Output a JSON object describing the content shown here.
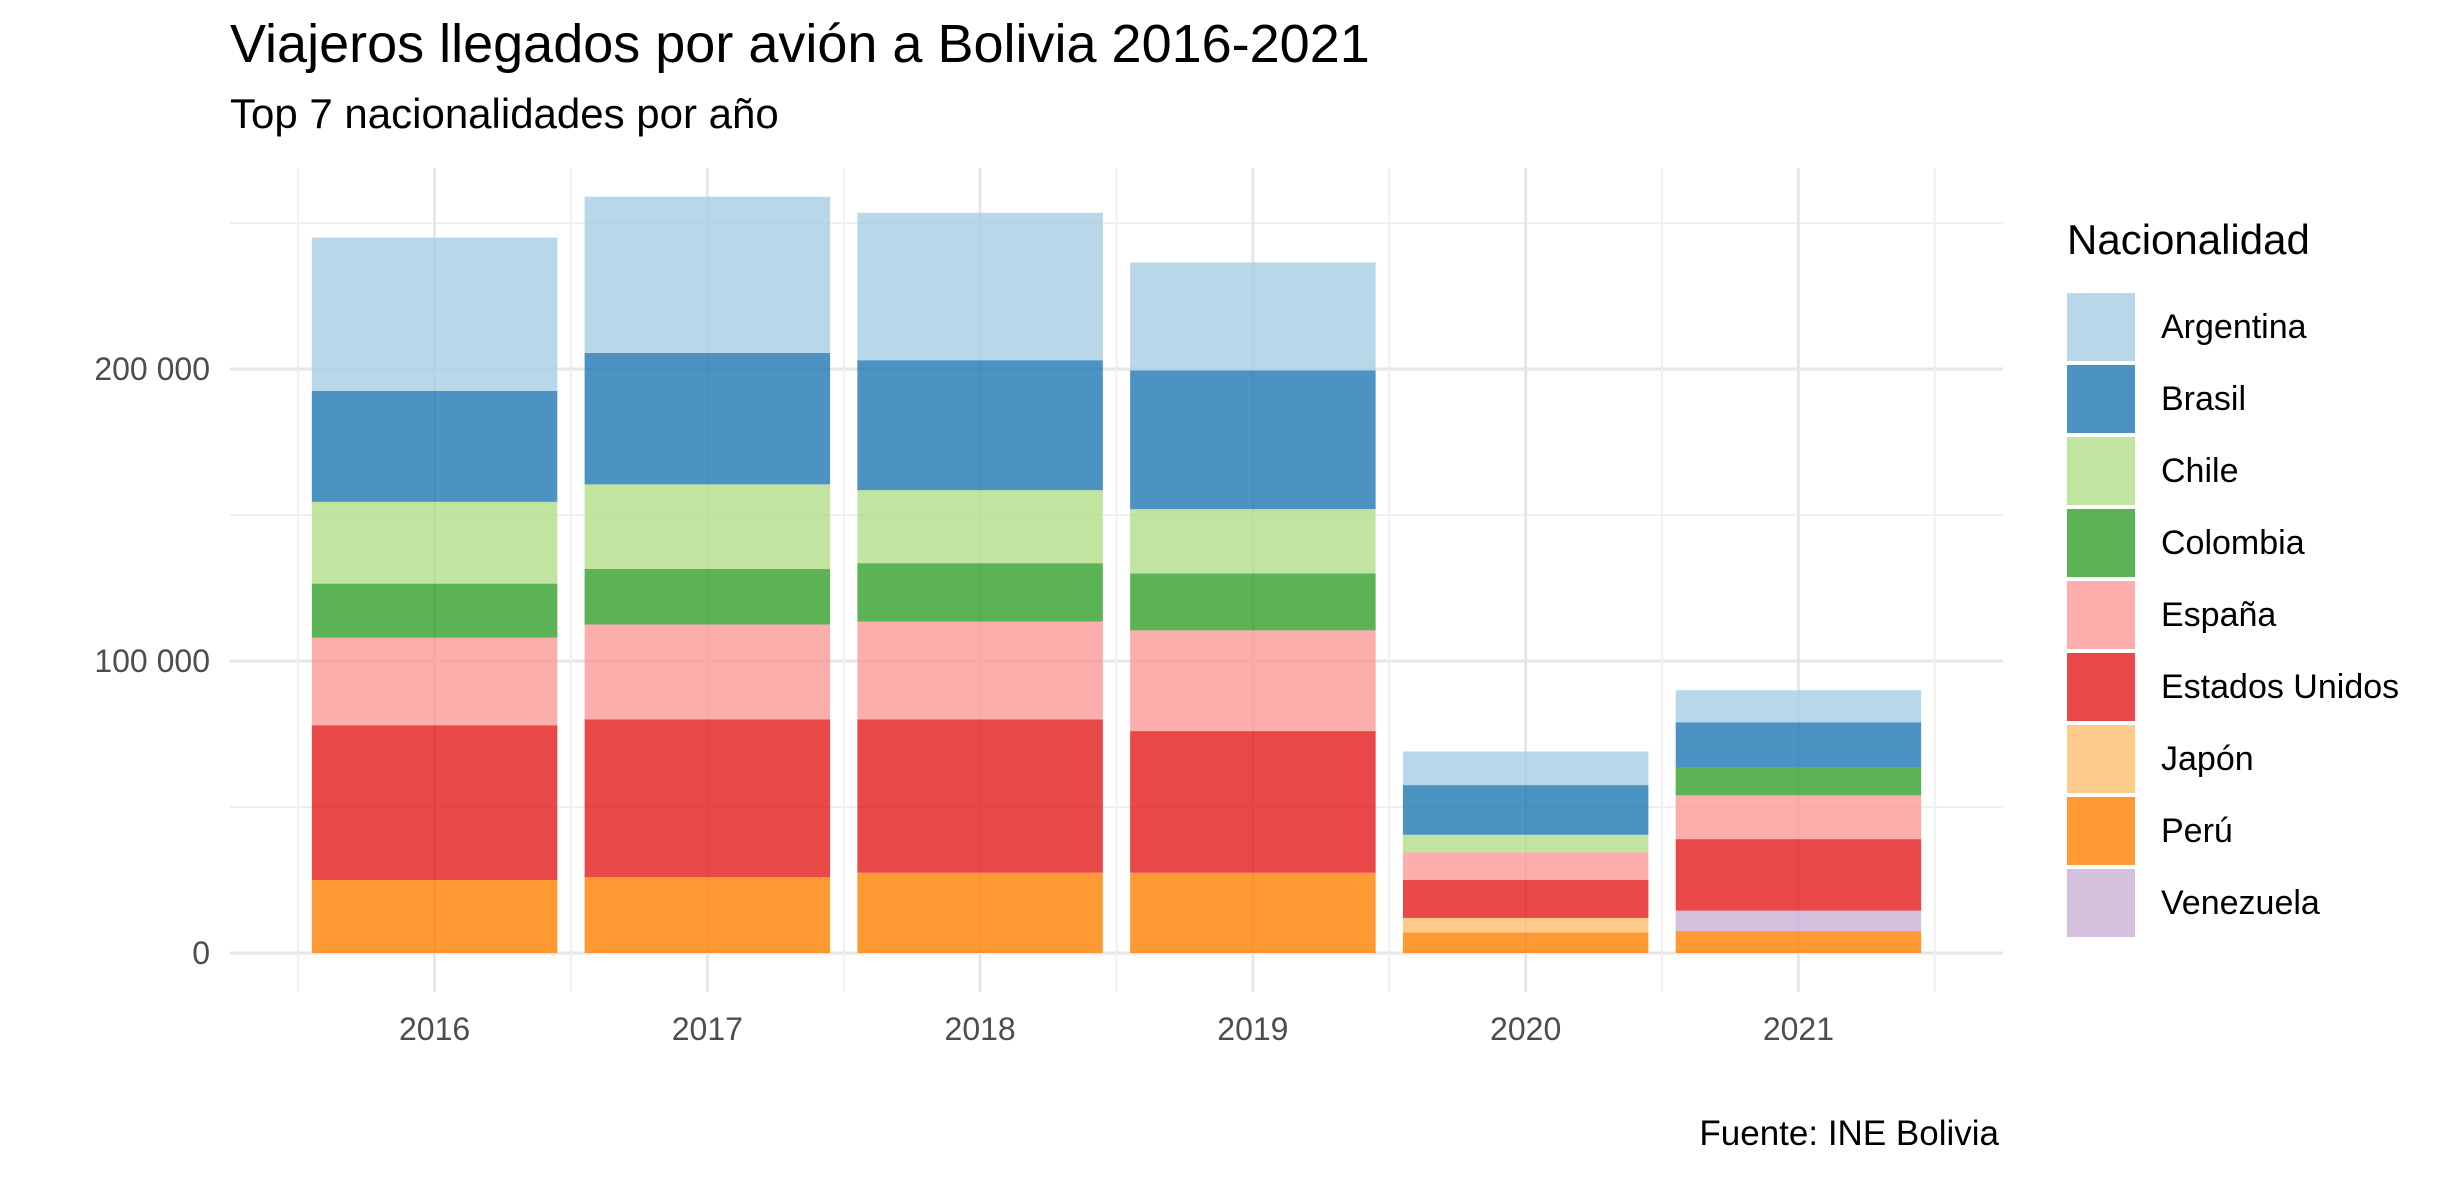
{
  "chart_data": {
    "type": "bar",
    "stacked": true,
    "title": "Viajeros llegados por avión a Bolivia 2016-2021",
    "subtitle": "Top 7 nacionalidades por año",
    "caption": "Fuente: INE Bolivia",
    "xlabel": "",
    "ylabel": "",
    "ylim": [
      0,
      280000
    ],
    "yticks": [
      0,
      100000,
      200000
    ],
    "ytick_labels": [
      "0",
      "100 000",
      "200 000"
    ],
    "grid": true,
    "legend_title": "Nacionalidad",
    "legend_position": "right",
    "categories": [
      "2016",
      "2017",
      "2018",
      "2019",
      "2020",
      "2021"
    ],
    "series": [
      {
        "name": "Perú",
        "color": "#ff7f00",
        "values": [
          25000,
          26000,
          27500,
          27500,
          7000,
          7500
        ]
      },
      {
        "name": "Venezuela",
        "color": "#cab2d6",
        "values": [
          0,
          0,
          0,
          0,
          0,
          7000
        ]
      },
      {
        "name": "Japón",
        "color": "#fdbf6f",
        "values": [
          0,
          0,
          0,
          0,
          5000,
          0
        ]
      },
      {
        "name": "Estados Unidos",
        "color": "#e31a1c",
        "values": [
          53000,
          54000,
          52500,
          48500,
          13000,
          24500
        ]
      },
      {
        "name": "España",
        "color": "#fb9a99",
        "values": [
          30000,
          32500,
          33500,
          34500,
          9500,
          15000
        ]
      },
      {
        "name": "Colombia",
        "color": "#33a02c",
        "values": [
          18500,
          19000,
          20000,
          19500,
          0,
          9500
        ]
      },
      {
        "name": "Chile",
        "color": "#b2df8a",
        "values": [
          28000,
          29000,
          25000,
          22000,
          6000,
          0
        ]
      },
      {
        "name": "Brasil",
        "color": "#1f78b4",
        "values": [
          38000,
          45000,
          44500,
          47500,
          17000,
          15500
        ]
      },
      {
        "name": "Argentina",
        "color": "#a6cee3",
        "values": [
          52500,
          53500,
          50500,
          37000,
          11500,
          11000
        ]
      }
    ],
    "legend_order": [
      "Argentina",
      "Brasil",
      "Chile",
      "Colombia",
      "España",
      "Estados Unidos",
      "Japón",
      "Perú",
      "Venezuela"
    ]
  }
}
